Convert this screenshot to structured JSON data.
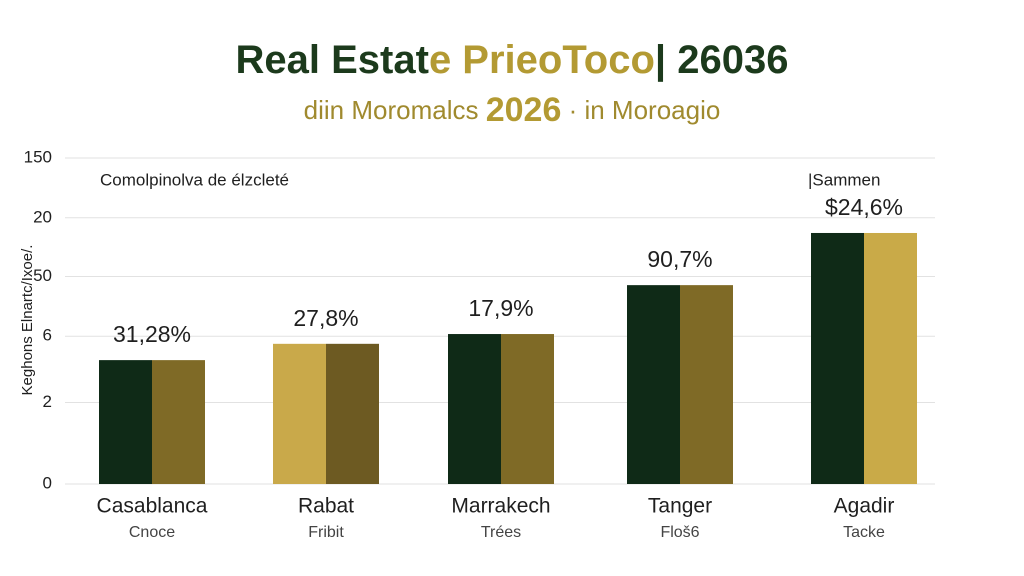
{
  "chart_data": {
    "type": "bar",
    "title_parts": [
      {
        "text": "Real Estat",
        "color": "#1c3a1c"
      },
      {
        "text": "e PrieoToco",
        "color": "#b39a33"
      },
      {
        "text": "| 26036",
        "color": "#1c3a1c"
      }
    ],
    "subtitle_parts": [
      {
        "text": "diin Moromalcs ",
        "color": "#a08a2e"
      },
      {
        "text": "2026",
        "color": "#b39a33"
      },
      {
        "text": " · in Moroagio",
        "color": "#a08a2e"
      }
    ],
    "y_label": "Keghons Elnartc/Ixoe/.",
    "notes": [
      "Comolpinolva de élzcleté",
      "|Sammen"
    ],
    "categories": [
      "Casablanca",
      "Rabat",
      "Marrakech",
      "Tanger",
      "Agadir"
    ],
    "sublabels": [
      "Cnoce",
      "Fribit",
      "Trées",
      "Floš6",
      "Tacke"
    ],
    "series": [
      {
        "colors": [
          "#0f2a17",
          "#c9a94a",
          "#0f2a17",
          "#0f2a17",
          "#0f2a17"
        ],
        "values": [
          57,
          64.5,
          69,
          91.5,
          115.5
        ]
      },
      {
        "colors": [
          "#7f6a26",
          "#6d5a22",
          "#7f6a26",
          "#7f6a26",
          "#c9aa48"
        ],
        "values": [
          57,
          64.5,
          69,
          91.5,
          115.5
        ]
      }
    ],
    "annotations": [
      "31,28%",
      "27,8%",
      "17,9%",
      "90,7%",
      "$24,6%"
    ],
    "ylim": [
      0,
      150
    ],
    "yticks": [
      0,
      {
        "value": 37.5,
        "label": "2"
      },
      {
        "value": 68,
        "label": "6"
      },
      {
        "value": 95.5,
        "label": "50"
      },
      {
        "value": 122.5,
        "label": "20"
      },
      150
    ],
    "grid": true
  }
}
